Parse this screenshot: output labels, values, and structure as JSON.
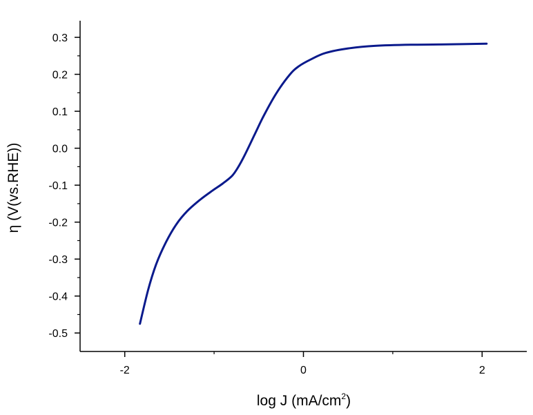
{
  "chart_data": {
    "type": "line",
    "title": "",
    "xlabel": "log J (mA/cm",
    "xlabel_sup": "2",
    "xlabel_end": ")",
    "ylabel": "η (V(vs.RHE))",
    "xlim": [
      -2.5,
      2.5
    ],
    "ylim": [
      -0.55,
      0.35
    ],
    "x_major_ticks": [
      -2,
      0,
      2
    ],
    "x_minor_ticks": [
      -1,
      1
    ],
    "x_tick_labels": [
      "-2",
      "0",
      "2"
    ],
    "y_major_ticks": [
      0.3,
      0.2,
      0.1,
      0.0,
      -0.1,
      -0.2,
      -0.3,
      -0.4,
      -0.5
    ],
    "y_tick_labels": [
      "0.3",
      "0.2",
      "0.1",
      "0.0",
      "-0.1",
      "-0.2",
      "-0.3",
      "-0.4",
      "-0.5"
    ],
    "y_minor_ticks": [
      0.25,
      0.15,
      0.05,
      -0.05,
      -0.15,
      -0.25,
      -0.35,
      -0.45
    ],
    "grid": false,
    "legend": "none",
    "series": [
      {
        "color": "#0a1a8c",
        "x": [
          -1.83,
          -1.74,
          -1.65,
          -1.54,
          -1.42,
          -1.3,
          -1.16,
          -1.02,
          -0.9,
          -0.8,
          -0.74,
          -0.66,
          -0.55,
          -0.44,
          -0.3,
          -0.15,
          -0.05,
          0.08,
          0.25,
          0.5,
          0.8,
          1.2,
          1.6,
          2.05
        ],
        "y": [
          -0.475,
          -0.385,
          -0.315,
          -0.255,
          -0.205,
          -0.17,
          -0.14,
          -0.115,
          -0.095,
          -0.075,
          -0.055,
          -0.02,
          0.035,
          0.09,
          0.15,
          0.2,
          0.222,
          0.24,
          0.258,
          0.27,
          0.277,
          0.28,
          0.281,
          0.283
        ]
      }
    ]
  }
}
